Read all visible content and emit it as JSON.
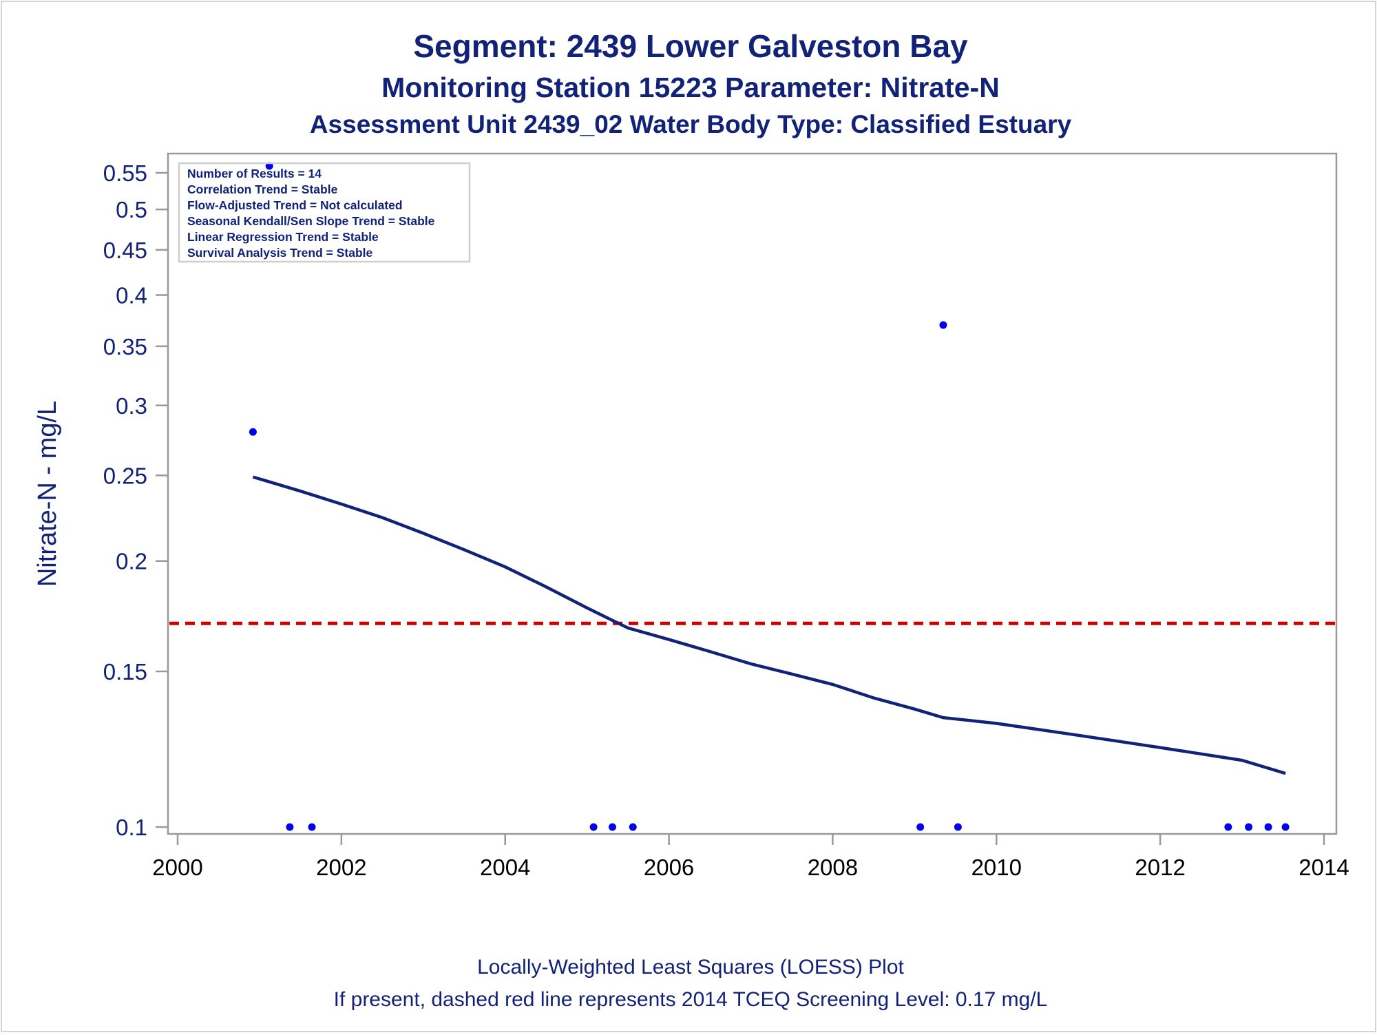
{
  "chart_data": {
    "type": "scatter",
    "title": "Segment: 2439  Lower Galveston Bay",
    "subtitle": "Monitoring Station 15223 Parameter: Nitrate-N",
    "subtitle2": "Assessment Unit 2439_02   Water Body Type: Classified Estuary",
    "xlabel": "",
    "ylabel": "Nitrate-N - mg/L",
    "yscale": "log",
    "xlim": [
      2000,
      2014
    ],
    "ylim": [
      0.1,
      0.56
    ],
    "x_ticks": [
      "2000",
      "2002",
      "2004",
      "2006",
      "2008",
      "2010",
      "2012",
      "2014"
    ],
    "y_ticks": [
      {
        "v": 0.1,
        "label": "0.1"
      },
      {
        "v": 0.15,
        "label": "0.15"
      },
      {
        "v": 0.2,
        "label": "0.2"
      },
      {
        "v": 0.25,
        "label": "0.25"
      },
      {
        "v": 0.3,
        "label": "0.3"
      },
      {
        "v": 0.35,
        "label": "0.35"
      },
      {
        "v": 0.4,
        "label": "0.4"
      },
      {
        "v": 0.45,
        "label": "0.45"
      },
      {
        "v": 0.5,
        "label": "0.5"
      },
      {
        "v": 0.55,
        "label": "0.55"
      }
    ],
    "grid": false,
    "stats_box": {
      "placement": "top-left",
      "lines": [
        "Number of Results = 14",
        "Correlation Trend = Stable",
        "Flow-Adjusted Trend = Not calculated",
        "Seasonal Kendall/Sen Slope Trend = Stable",
        "Linear Regression Trend = Stable",
        "Survival Analysis Trend = Stable"
      ]
    },
    "points": [
      {
        "x": 2000.92,
        "y": 0.28
      },
      {
        "x": 2001.12,
        "y": 0.56
      },
      {
        "x": 2001.37,
        "y": 0.1
      },
      {
        "x": 2001.64,
        "y": 0.1
      },
      {
        "x": 2005.08,
        "y": 0.1
      },
      {
        "x": 2005.31,
        "y": 0.1
      },
      {
        "x": 2005.56,
        "y": 0.1
      },
      {
        "x": 2009.07,
        "y": 0.1
      },
      {
        "x": 2009.35,
        "y": 0.37
      },
      {
        "x": 2009.53,
        "y": 0.1
      },
      {
        "x": 2012.83,
        "y": 0.1
      },
      {
        "x": 2013.08,
        "y": 0.1
      },
      {
        "x": 2013.32,
        "y": 0.1
      },
      {
        "x": 2013.53,
        "y": 0.1
      }
    ],
    "loess": [
      {
        "x": 2000.92,
        "y": 0.249
      },
      {
        "x": 2001.5,
        "y": 0.24
      },
      {
        "x": 2002.0,
        "y": 0.232
      },
      {
        "x": 2002.5,
        "y": 0.224
      },
      {
        "x": 2003.0,
        "y": 0.215
      },
      {
        "x": 2003.5,
        "y": 0.206
      },
      {
        "x": 2004.0,
        "y": 0.197
      },
      {
        "x": 2004.5,
        "y": 0.187
      },
      {
        "x": 2005.0,
        "y": 0.177
      },
      {
        "x": 2005.5,
        "y": 0.168
      },
      {
        "x": 2006.0,
        "y": 0.163
      },
      {
        "x": 2006.5,
        "y": 0.158
      },
      {
        "x": 2007.0,
        "y": 0.153
      },
      {
        "x": 2007.5,
        "y": 0.149
      },
      {
        "x": 2008.0,
        "y": 0.145
      },
      {
        "x": 2008.5,
        "y": 0.14
      },
      {
        "x": 2009.0,
        "y": 0.136
      },
      {
        "x": 2009.35,
        "y": 0.133
      },
      {
        "x": 2010.0,
        "y": 0.131
      },
      {
        "x": 2010.5,
        "y": 0.129
      },
      {
        "x": 2011.0,
        "y": 0.127
      },
      {
        "x": 2011.5,
        "y": 0.125
      },
      {
        "x": 2012.0,
        "y": 0.123
      },
      {
        "x": 2012.5,
        "y": 0.121
      },
      {
        "x": 2013.0,
        "y": 0.119
      },
      {
        "x": 2013.53,
        "y": 0.115
      }
    ],
    "reference_line": {
      "y": 0.17,
      "style": "dashed",
      "color": "#cc0000"
    },
    "footnotes": [
      "Locally-Weighted Least Squares (LOESS) Plot",
      "If present, dashed red line represents 2014 TCEQ Screening Level: 0.17 mg/L"
    ],
    "colors": {
      "points": "#0000ee",
      "loess": "#112277",
      "text": "#112277",
      "axis": "#999999"
    }
  }
}
